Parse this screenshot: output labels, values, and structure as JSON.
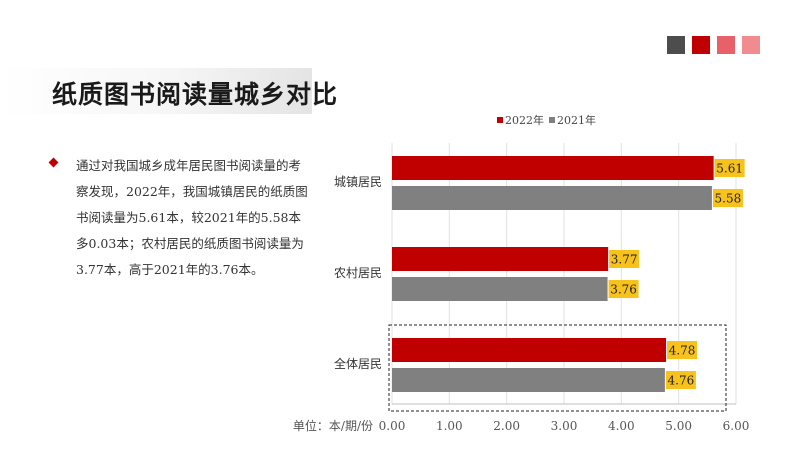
{
  "header": {
    "title": "纸质图书阅读量城乡对比",
    "swatch_colors": [
      "#4d4d4d",
      "#c00000",
      "#e8606a",
      "#f08c90"
    ]
  },
  "body": {
    "text": "通过对我国城乡成年居民图书阅读量的考察发现，2022年，我国城镇居民的纸质图书阅读量为5.61本，较2021年的5.58本多0.03本；农村居民的纸质图书阅读量为3.77本，高于2021年的3.76本。"
  },
  "chart_data": {
    "type": "bar",
    "orientation": "horizontal",
    "categories": [
      "城镇居民",
      "农村居民",
      "全体居民"
    ],
    "series": [
      {
        "name": "2022年",
        "values": [
          5.61,
          3.77,
          4.78
        ],
        "color": "#c00000"
      },
      {
        "name": "2021年",
        "values": [
          5.58,
          3.76,
          4.76
        ],
        "color": "#808080"
      }
    ],
    "value_labels": [
      [
        "5.61",
        "3.77",
        "4.78"
      ],
      [
        "5.58",
        "3.76",
        "4.76"
      ]
    ],
    "xlim": [
      0,
      6
    ],
    "ticks": [
      0,
      1,
      2,
      3,
      4,
      5,
      6
    ],
    "tick_labels": [
      "0.00",
      "1.00",
      "2.00",
      "3.00",
      "4.00",
      "5.00",
      "6.00"
    ],
    "unit_label": "单位：本/期/份",
    "legend_position": "top",
    "grid": true,
    "highlighted_category": "全体居民",
    "label_box_color": "#f7c21c"
  }
}
